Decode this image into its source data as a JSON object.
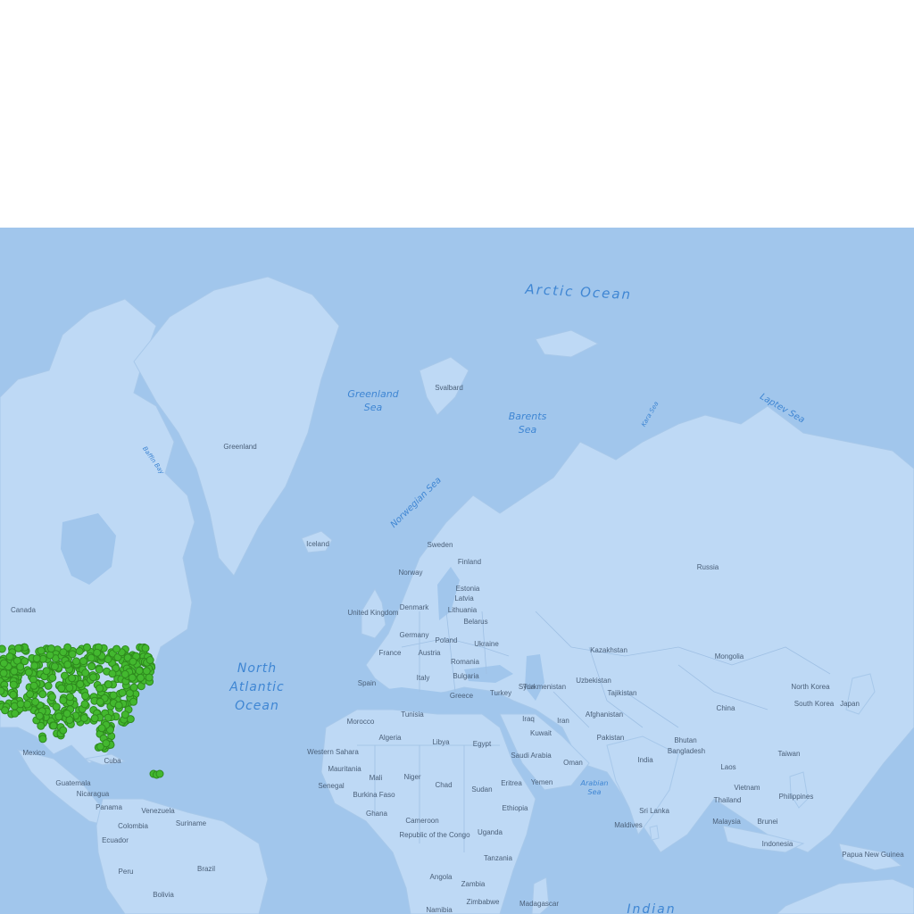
{
  "colors": {
    "water": "#a1c6ec",
    "land": "#bed9f5",
    "ocean_label": "#3f86d3",
    "country_label": "#4a5f78",
    "marker_fill": "#43b82f",
    "marker_stroke": "#2e8a1e"
  },
  "ocean_labels": [
    {
      "id": "arctic-ocean",
      "lines": [
        "Arctic Ocean"
      ]
    },
    {
      "id": "greenland-sea",
      "lines": [
        "Greenland",
        "Sea"
      ]
    },
    {
      "id": "barents-sea",
      "lines": [
        "Barents",
        "Sea"
      ]
    },
    {
      "id": "kara-sea",
      "lines": [
        "Kara Sea"
      ]
    },
    {
      "id": "laptev-sea",
      "lines": [
        "Laptev Sea"
      ]
    },
    {
      "id": "norwegian-sea",
      "lines": [
        "Norwegian Sea"
      ]
    },
    {
      "id": "baffin-bay",
      "lines": [
        "Baffin Bay"
      ]
    },
    {
      "id": "north-atlantic-ocean",
      "lines": [
        "North",
        "Atlantic",
        "Ocean"
      ]
    },
    {
      "id": "arabian-sea",
      "lines": [
        "Arabian",
        "Sea"
      ]
    },
    {
      "id": "indian-ocean",
      "lines": [
        "Indian"
      ]
    }
  ],
  "country_labels": [
    "Greenland",
    "Svalbard",
    "Iceland",
    "Sweden",
    "Finland",
    "Norway",
    "Estonia",
    "Denmark",
    "Latvia",
    "Lithuania",
    "United Kingdom",
    "Belarus",
    "Germany",
    "Ukraine",
    "Poland",
    "France",
    "Austria",
    "Romania",
    "Spain",
    "Italy",
    "Bulgaria",
    "Greece",
    "Turkey",
    "Morocco",
    "Tunisia",
    "Algeria",
    "Libya",
    "Egypt",
    "Western Sahara",
    "Mauritania",
    "Mali",
    "Niger",
    "Chad",
    "Sudan",
    "Senegal",
    "Burkina Faso",
    "Ghana",
    "Cameroon",
    "Republic of the Congo",
    "Uganda",
    "Eritrea",
    "Ethiopia",
    "Yemen",
    "Oman",
    "Saudi Arabia",
    "Kuwait",
    "Iraq",
    "Iran",
    "Syria",
    "Turkmenistan",
    "Uzbekistan",
    "Tajikistan",
    "Afghanistan",
    "Pakistan",
    "India",
    "Bangladesh",
    "Bhutan",
    "Sri Lanka",
    "Maldives",
    "Kazakhstan",
    "Mongolia",
    "China",
    "North Korea",
    "South Korea",
    "Japan",
    "Taiwan",
    "Laos",
    "Vietnam",
    "Thailand",
    "Philippines",
    "Malaysia",
    "Brunei",
    "Indonesia",
    "Papua New Guinea",
    "Tanzania",
    "Angola",
    "Zambia",
    "Zimbabwe",
    "Namibia",
    "Madagascar",
    "Russia",
    "Canada",
    "Mexico",
    "Cuba",
    "Guatemala",
    "Nicaragua",
    "Panama",
    "Venezuela",
    "Suriname",
    "Colombia",
    "Ecuador",
    "Peru",
    "Brazil",
    "Bolivia"
  ],
  "markers": {
    "description_regions": [
      "United States (dense cluster)",
      "Florida",
      "Puerto Rico"
    ],
    "puerto_rico_count": 3
  }
}
